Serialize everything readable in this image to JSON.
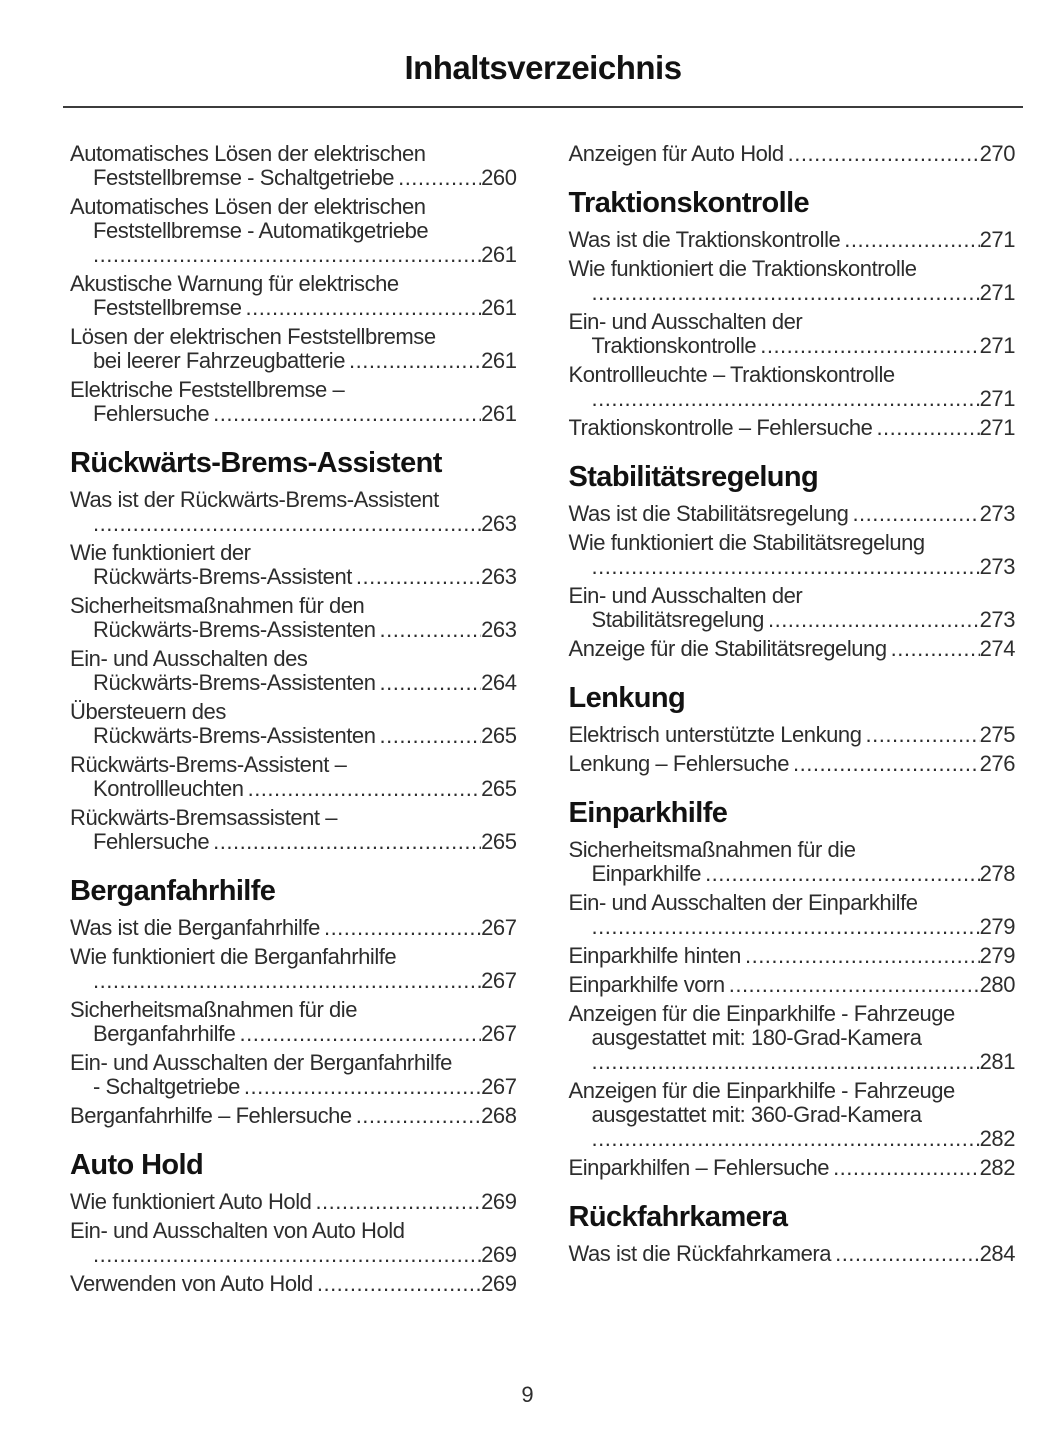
{
  "page": {
    "title": "Inhaltsverzeichnis",
    "page_number": "9"
  },
  "colors": {
    "background": "#ffffff",
    "text": "#2d2d2d",
    "heading": "#121212",
    "rule": "#3c3c3c"
  },
  "columns": [
    {
      "blocks": [
        {
          "type": "entry",
          "lines": [
            "Automatisches Lösen der elektrischen",
            "Feststellbremse - Schaltgetriebe"
          ],
          "page": "260"
        },
        {
          "type": "entry",
          "lines": [
            "Automatisches Lösen der elektrischen",
            "Feststellbremse - Automatikgetriebe",
            ""
          ],
          "page": "261"
        },
        {
          "type": "entry",
          "lines": [
            "Akustische Warnung für elektrische",
            "Feststellbremse"
          ],
          "page": "261"
        },
        {
          "type": "entry",
          "lines": [
            "Lösen der elektrischen Feststellbremse",
            "bei leerer Fahrzeugbatterie"
          ],
          "page": "261"
        },
        {
          "type": "entry",
          "lines": [
            "Elektrische Feststellbremse –",
            "Fehlersuche"
          ],
          "page": "261"
        },
        {
          "type": "heading",
          "text": "Rückwärts-Brems-Assistent"
        },
        {
          "type": "entry",
          "lines": [
            "Was ist der Rückwärts-Brems-Assistent",
            ""
          ],
          "page": "263"
        },
        {
          "type": "entry",
          "lines": [
            "Wie funktioniert der",
            "Rückwärts-Brems-Assistent"
          ],
          "page": "263"
        },
        {
          "type": "entry",
          "lines": [
            "Sicherheitsmaßnahmen für den",
            "Rückwärts-Brems-Assistenten"
          ],
          "page": "263"
        },
        {
          "type": "entry",
          "lines": [
            "Ein- und Ausschalten des",
            "Rückwärts-Brems-Assistenten"
          ],
          "page": "264"
        },
        {
          "type": "entry",
          "lines": [
            "Übersteuern des",
            "Rückwärts-Brems-Assistenten"
          ],
          "page": "265"
        },
        {
          "type": "entry",
          "lines": [
            "Rückwärts-Brems-Assistent –",
            "Kontrollleuchten"
          ],
          "page": "265"
        },
        {
          "type": "entry",
          "lines": [
            "Rückwärts-Bremsassistent –",
            "Fehlersuche"
          ],
          "page": "265"
        },
        {
          "type": "heading",
          "text": "Berganfahrhilfe"
        },
        {
          "type": "entry",
          "lines": [
            "Was ist die Berganfahrhilfe"
          ],
          "page": "267"
        },
        {
          "type": "entry",
          "lines": [
            "Wie funktioniert die Berganfahrhilfe",
            ""
          ],
          "page": "267"
        },
        {
          "type": "entry",
          "lines": [
            "Sicherheitsmaßnahmen für die",
            "Berganfahrhilfe"
          ],
          "page": "267"
        },
        {
          "type": "entry",
          "lines": [
            "Ein- und Ausschalten der Berganfahrhilfe",
            "- Schaltgetriebe"
          ],
          "page": "267"
        },
        {
          "type": "entry",
          "lines": [
            "Berganfahrhilfe – Fehlersuche"
          ],
          "page": "268"
        },
        {
          "type": "heading",
          "text": "Auto Hold"
        },
        {
          "type": "entry",
          "lines": [
            "Wie funktioniert Auto Hold"
          ],
          "page": "269"
        },
        {
          "type": "entry",
          "lines": [
            "Ein- und Ausschalten von Auto Hold",
            ""
          ],
          "page": "269"
        },
        {
          "type": "entry",
          "lines": [
            "Verwenden von Auto Hold"
          ],
          "page": "269"
        }
      ]
    },
    {
      "blocks": [
        {
          "type": "entry",
          "lines": [
            "Anzeigen für Auto Hold"
          ],
          "page": "270"
        },
        {
          "type": "heading",
          "text": "Traktionskontrolle"
        },
        {
          "type": "entry",
          "lines": [
            "Was ist die Traktionskontrolle"
          ],
          "page": "271"
        },
        {
          "type": "entry",
          "lines": [
            "Wie funktioniert die Traktionskontrolle",
            ""
          ],
          "page": "271"
        },
        {
          "type": "entry",
          "lines": [
            "Ein- und Ausschalten der",
            "Traktionskontrolle"
          ],
          "page": "271"
        },
        {
          "type": "entry",
          "lines": [
            "Kontrollleuchte – Traktionskontrolle",
            ""
          ],
          "page": "271"
        },
        {
          "type": "entry",
          "lines": [
            "Traktionskontrolle – Fehlersuche"
          ],
          "page": "271"
        },
        {
          "type": "heading",
          "text": "Stabilitätsregelung"
        },
        {
          "type": "entry",
          "lines": [
            "Was ist die Stabilitätsregelung"
          ],
          "page": "273"
        },
        {
          "type": "entry",
          "lines": [
            "Wie funktioniert die Stabilitätsregelung",
            ""
          ],
          "page": "273"
        },
        {
          "type": "entry",
          "lines": [
            "Ein- und Ausschalten der",
            "Stabilitätsregelung"
          ],
          "page": "273"
        },
        {
          "type": "entry",
          "lines": [
            "Anzeige für die Stabilitätsregelung"
          ],
          "page": "274"
        },
        {
          "type": "heading",
          "text": "Lenkung"
        },
        {
          "type": "entry",
          "lines": [
            "Elektrisch unterstützte Lenkung"
          ],
          "page": "275"
        },
        {
          "type": "entry",
          "lines": [
            "Lenkung – Fehlersuche"
          ],
          "page": "276"
        },
        {
          "type": "heading",
          "text": "Einparkhilfe"
        },
        {
          "type": "entry",
          "lines": [
            "Sicherheitsmaßnahmen für die",
            "Einparkhilfe"
          ],
          "page": "278"
        },
        {
          "type": "entry",
          "lines": [
            "Ein- und Ausschalten der Einparkhilfe",
            ""
          ],
          "page": "279"
        },
        {
          "type": "entry",
          "lines": [
            "Einparkhilfe hinten"
          ],
          "page": "279"
        },
        {
          "type": "entry",
          "lines": [
            "Einparkhilfe vorn"
          ],
          "page": "280"
        },
        {
          "type": "entry",
          "lines": [
            "Anzeigen für die Einparkhilfe - Fahrzeuge",
            "ausgestattet mit: 180-Grad-Kamera",
            ""
          ],
          "page": "281"
        },
        {
          "type": "entry",
          "lines": [
            "Anzeigen für die Einparkhilfe - Fahrzeuge",
            "ausgestattet mit: 360-Grad-Kamera",
            ""
          ],
          "page": "282"
        },
        {
          "type": "entry",
          "lines": [
            "Einparkhilfen – Fehlersuche"
          ],
          "page": "282"
        },
        {
          "type": "heading",
          "text": "Rückfahrkamera"
        },
        {
          "type": "entry",
          "lines": [
            "Was ist die Rückfahrkamera"
          ],
          "page": "284"
        }
      ]
    }
  ]
}
